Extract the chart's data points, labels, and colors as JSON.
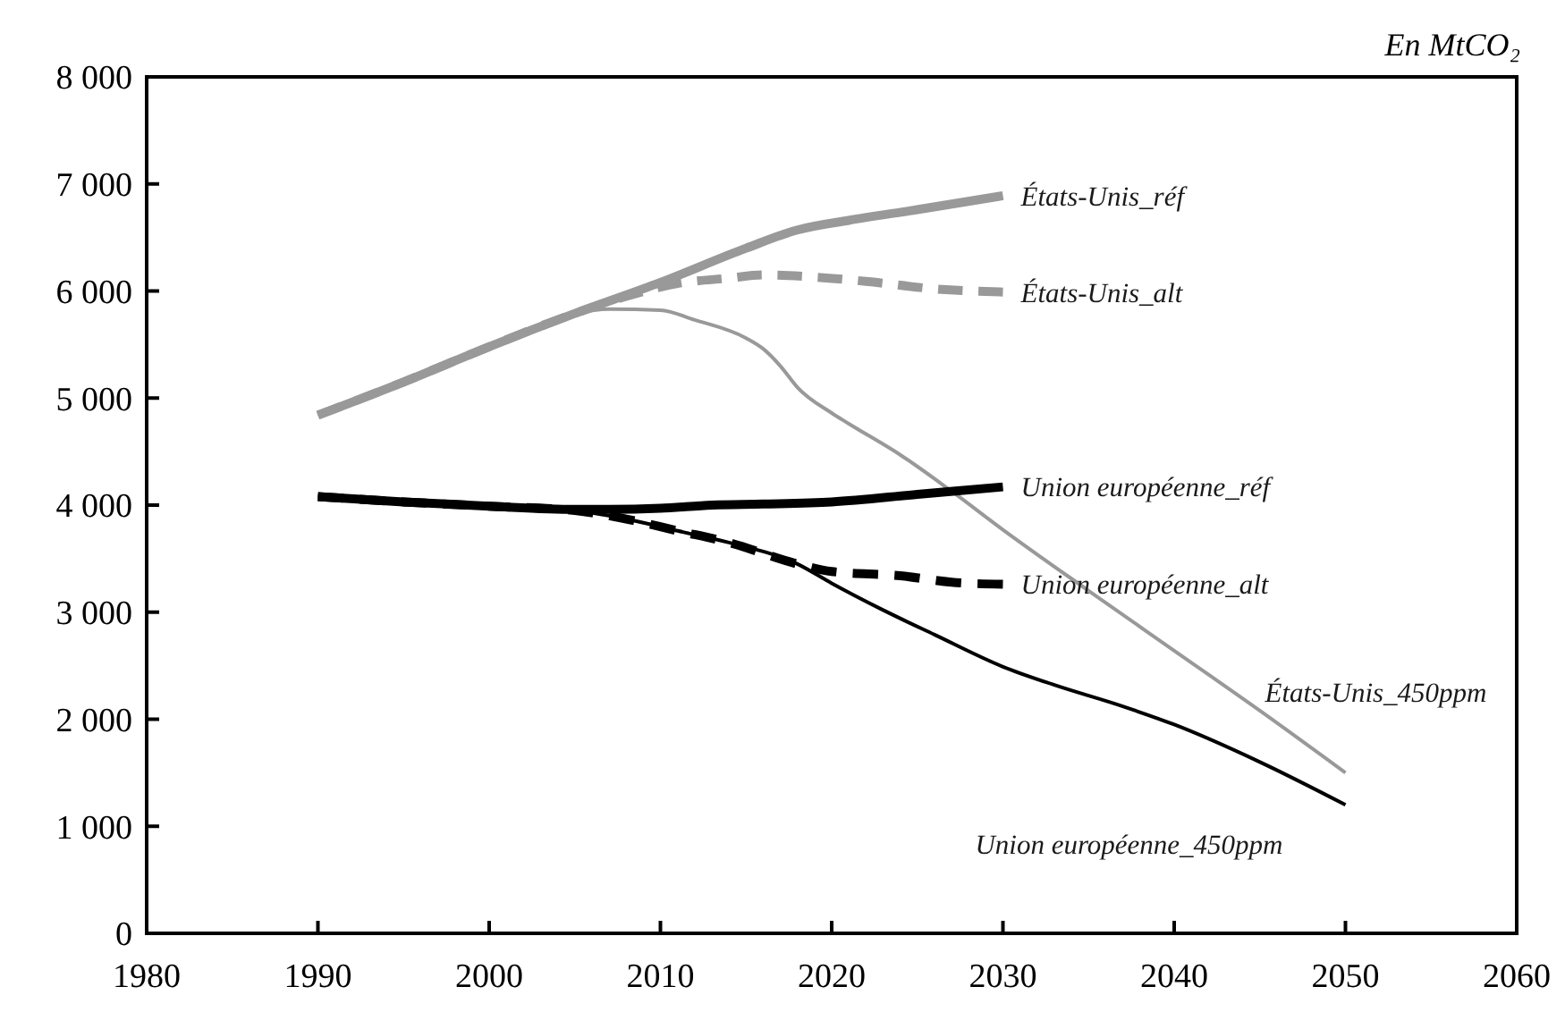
{
  "chart_data": {
    "type": "line",
    "ylabel": "En MtCO₂",
    "xlim": [
      1980,
      2060
    ],
    "xticks": [
      1980,
      1990,
      2000,
      2010,
      2020,
      2030,
      2040,
      2050,
      2060
    ],
    "ylim": [
      0,
      8000
    ],
    "yticks": [
      0,
      {
        "value": 1000,
        "label": "1 000"
      },
      {
        "value": 2000,
        "label": "2 000"
      },
      {
        "value": 3000,
        "label": "3 000"
      },
      {
        "value": 4000,
        "label": "4 000"
      },
      {
        "value": 5000,
        "label": "5 000"
      },
      {
        "value": 6000,
        "label": "6 000"
      },
      {
        "value": 7000,
        "label": "7 000"
      },
      {
        "value": 8000,
        "label": "8 000"
      }
    ],
    "grid": false,
    "marker": "none",
    "series": [
      {
        "name": "États-Unis_réf",
        "color": "#999999",
        "line_style": "solid",
        "x": [
          1990,
          1995,
          2000,
          2005,
          2010,
          2015,
          2018,
          2021,
          2025,
          2030
        ],
        "values": [
          4840,
          5150,
          5480,
          5790,
          6080,
          6400,
          6570,
          6660,
          6760,
          6890
        ]
      },
      {
        "name": "États-Unis_alt",
        "color": "#999999",
        "line_style": "dashed",
        "x": [
          1990,
          1995,
          2000,
          2005,
          2008,
          2011,
          2014,
          2016,
          2019,
          2022,
          2026,
          2030
        ],
        "values": [
          4840,
          5150,
          5480,
          5790,
          5950,
          6070,
          6120,
          6150,
          6130,
          6090,
          6020,
          5990
        ]
      },
      {
        "name": "États-Unis_450ppm",
        "color": "#999999",
        "line_style": "solid",
        "x": [
          1990,
          1995,
          2000,
          2005,
          2007,
          2010,
          2012,
          2015,
          2016,
          2017,
          2018,
          2020,
          2021,
          2024,
          2027,
          2030,
          2035,
          2040,
          2045,
          2050
        ],
        "values": [
          4840,
          5150,
          5480,
          5790,
          5830,
          5820,
          5730,
          5560,
          5460,
          5300,
          5100,
          4860,
          4760,
          4470,
          4130,
          3770,
          3200,
          2640,
          2080,
          1500
        ]
      },
      {
        "name": "Union européenne_réf",
        "color": "#000000",
        "line_style": "solid",
        "x": [
          1990,
          1995,
          2000,
          2005,
          2007,
          2010,
          2013,
          2016,
          2020,
          2025,
          2030
        ],
        "values": [
          4080,
          4030,
          3990,
          3960,
          3960,
          3970,
          4000,
          4010,
          4030,
          4100,
          4170
        ]
      },
      {
        "name": "Union européenne_alt",
        "color": "#000000",
        "line_style": "dashed",
        "x": [
          1990,
          1995,
          2000,
          2005,
          2008,
          2011,
          2014,
          2018,
          2020,
          2024,
          2027,
          2030
        ],
        "values": [
          4080,
          4030,
          3990,
          3950,
          3870,
          3760,
          3650,
          3450,
          3380,
          3340,
          3280,
          3260
        ]
      },
      {
        "name": "Union européenne_450ppm",
        "color": "#000000",
        "line_style": "solid",
        "x": [
          1990,
          1995,
          2000,
          2005,
          2008,
          2011,
          2014,
          2018,
          2020,
          2023,
          2026,
          2030,
          2033,
          2037,
          2040,
          2045,
          2050
        ],
        "values": [
          4080,
          4030,
          3990,
          3950,
          3870,
          3760,
          3650,
          3450,
          3270,
          3020,
          2790,
          2490,
          2320,
          2120,
          1950,
          1600,
          1200
        ]
      }
    ]
  }
}
